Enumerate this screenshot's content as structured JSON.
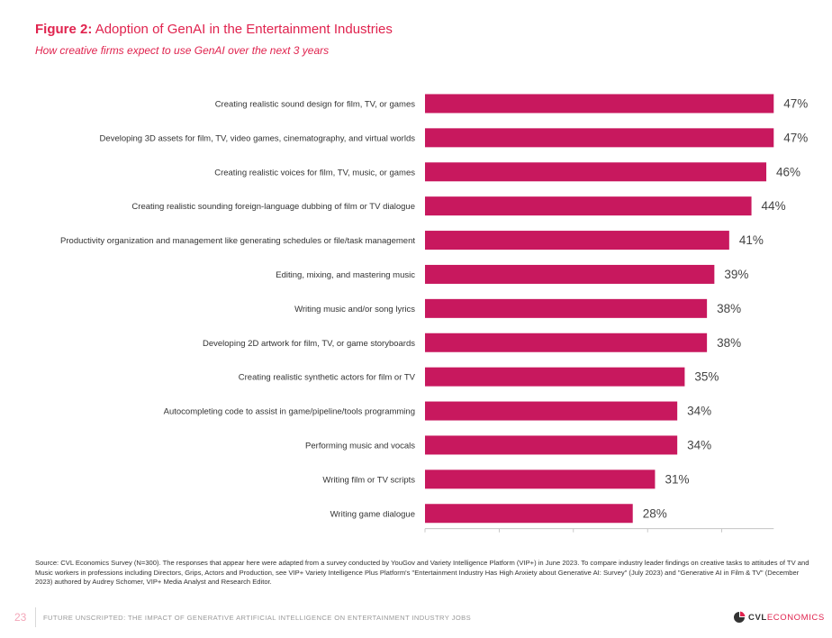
{
  "header": {
    "figure_label": "Figure 2:",
    "title": "Adoption of GenAI in the Entertainment Industries",
    "subtitle": "How creative firms expect to use GenAI over the next 3 years"
  },
  "chart_data": {
    "type": "bar",
    "orientation": "horizontal",
    "title": "",
    "xlabel": "",
    "ylabel": "",
    "xlim": [
      0,
      47
    ],
    "xticks": [
      "0%",
      "10%",
      "20%",
      "30%",
      "40%"
    ],
    "categories": [
      "Creating realistic sound design for film, TV, or games",
      "Developing 3D assets for film, TV, video games, cinematography, and virtual worlds",
      "Creating realistic voices for film, TV, music, or games",
      "Creating realistic sounding foreign-language dubbing of film or TV dialogue",
      "Productivity organization and management like generating schedules or file/task management",
      "Editing, mixing, and mastering music",
      "Writing music and/or song lyrics",
      "Developing 2D artwork for film, TV, or game storyboards",
      "Creating realistic synthetic actors for film or TV",
      "Autocompleting code to assist in game/pipeline/tools programming",
      "Performing music and vocals",
      "Writing film or TV scripts",
      "Writing game dialogue"
    ],
    "values": [
      47,
      47,
      46,
      44,
      41,
      39,
      38,
      38,
      35,
      34,
      34,
      31,
      28
    ],
    "value_labels": [
      "47%",
      "47%",
      "46%",
      "44%",
      "41%",
      "39%",
      "38%",
      "38%",
      "35%",
      "34%",
      "34%",
      "31%",
      "28%"
    ],
    "bar_color": "#c8185e",
    "grid": false,
    "legend": "none"
  },
  "source": "Source: CVL Economics Survey (N=300). The responses that appear here were adapted from a survey conducted by YouGov and Variety Intelligence Platform (VIP+) in June 2023. To compare industry leader findings on creative tasks to attitudes of TV and Music workers in professions including Directors, Grips, Actors and Production, see VIP+ Variety Intelligence Plus Platform's \"Entertainment Industry Has High Anxiety about Generative AI: Survey\" (July 2023) and \"Generative AI in Film & TV\" (December 2023) authored by Audrey Schomer, VIP+ Media Analyst and Research Editor.",
  "footer": {
    "page_number": "23",
    "text": "FUTURE UNSCRIPTED: THE IMPACT OF GENERATIVE ARTIFICIAL INTELLIGENCE ON ENTERTAINMENT INDUSTRY JOBS",
    "logo_bold": "CVL",
    "logo_rest": "ECONOMICS"
  },
  "colors": {
    "accent": "#e0234e",
    "bar": "#c8185e"
  }
}
